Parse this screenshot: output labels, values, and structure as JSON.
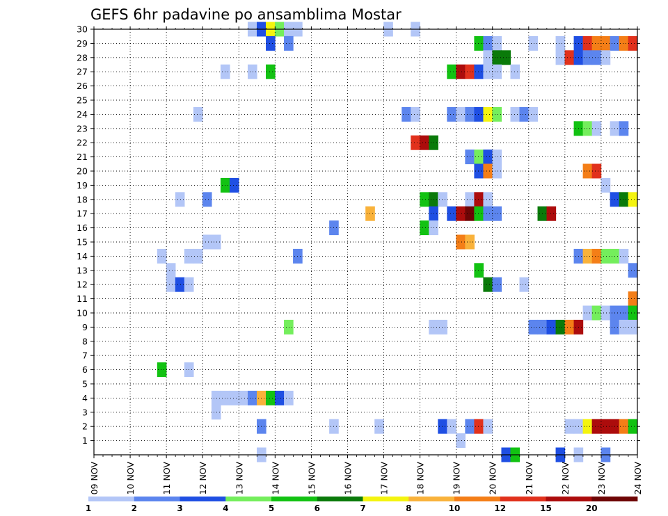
{
  "chart_data": {
    "type": "heatmap",
    "title": "GEFS 6hr padavine po ansamblima Mostar",
    "xlabel": "",
    "ylabel": "",
    "x_tick_labels": [
      "09 NOV",
      "10 NOV",
      "11 NOV",
      "12 NOV",
      "13 NOV",
      "14 NOV",
      "15 NOV",
      "16 NOV",
      "17 NOV",
      "18 NOV",
      "19 NOV",
      "20 NOV",
      "21 NOV",
      "22 NOV",
      "23 NOV",
      "24 NOV"
    ],
    "y_tick_labels": [
      "1",
      "2",
      "3",
      "4",
      "5",
      "6",
      "7",
      "8",
      "9",
      "10",
      "11",
      "12",
      "13",
      "14",
      "15",
      "16",
      "17",
      "18",
      "19",
      "20",
      "21",
      "22",
      "23",
      "24",
      "25",
      "26",
      "27",
      "28",
      "29",
      "30"
    ],
    "xlim": [
      0,
      60
    ],
    "ylim": [
      0,
      30
    ],
    "grid": true,
    "legend": {
      "position": "bottom",
      "thresholds": [
        "1",
        "2",
        "3",
        "4",
        "5",
        "6",
        "7",
        "8",
        "10",
        "12",
        "15",
        "20"
      ],
      "colors": [
        "#b3c6f7",
        "#5c85ee",
        "#1f4fe3",
        "#74ee5c",
        "#12c212",
        "#0a7a0a",
        "#f4f40f",
        "#f9b23b",
        "#f47e17",
        "#e1311c",
        "#ac0c0c",
        "#6e0505"
      ]
    },
    "cells_note": "each cell = [member, step (6-h interval index from 09 NOV 00Z), class index 0-11 into legend colors]",
    "cells": [
      [
        30,
        17,
        0
      ],
      [
        30,
        18,
        2
      ],
      [
        30,
        19,
        6
      ],
      [
        30,
        20,
        3
      ],
      [
        30,
        21,
        0
      ],
      [
        30,
        22,
        0
      ],
      [
        30,
        32,
        0
      ],
      [
        30,
        35,
        0
      ],
      [
        29,
        19,
        2
      ],
      [
        29,
        21,
        1
      ],
      [
        29,
        42,
        4
      ],
      [
        29,
        43,
        1
      ],
      [
        29,
        44,
        0
      ],
      [
        29,
        48,
        0
      ],
      [
        29,
        51,
        0
      ],
      [
        29,
        53,
        2
      ],
      [
        29,
        54,
        9
      ],
      [
        29,
        55,
        8
      ],
      [
        29,
        56,
        8
      ],
      [
        29,
        57,
        1
      ],
      [
        29,
        58,
        8
      ],
      [
        29,
        59,
        9
      ],
      [
        28,
        43,
        0
      ],
      [
        28,
        44,
        5
      ],
      [
        28,
        45,
        5
      ],
      [
        28,
        51,
        0
      ],
      [
        28,
        52,
        9
      ],
      [
        28,
        53,
        2
      ],
      [
        28,
        54,
        1
      ],
      [
        28,
        55,
        1
      ],
      [
        28,
        56,
        0
      ],
      [
        27,
        14,
        0
      ],
      [
        27,
        17,
        0
      ],
      [
        27,
        19,
        4
      ],
      [
        27,
        39,
        4
      ],
      [
        27,
        40,
        10
      ],
      [
        27,
        41,
        9
      ],
      [
        27,
        42,
        2
      ],
      [
        27,
        43,
        0
      ],
      [
        27,
        44,
        0
      ],
      [
        27,
        46,
        0
      ],
      [
        24,
        11,
        0
      ],
      [
        24,
        34,
        1
      ],
      [
        24,
        35,
        0
      ],
      [
        24,
        39,
        1
      ],
      [
        24,
        40,
        0
      ],
      [
        24,
        41,
        1
      ],
      [
        24,
        42,
        2
      ],
      [
        24,
        43,
        6
      ],
      [
        24,
        44,
        3
      ],
      [
        24,
        46,
        0
      ],
      [
        24,
        47,
        1
      ],
      [
        24,
        48,
        0
      ],
      [
        23,
        53,
        4
      ],
      [
        23,
        54,
        3
      ],
      [
        23,
        55,
        0
      ],
      [
        23,
        57,
        0
      ],
      [
        23,
        58,
        1
      ],
      [
        22,
        35,
        9
      ],
      [
        22,
        36,
        10
      ],
      [
        22,
        37,
        5
      ],
      [
        21,
        41,
        1
      ],
      [
        21,
        42,
        3
      ],
      [
        21,
        43,
        2
      ],
      [
        21,
        44,
        0
      ],
      [
        20,
        42,
        2
      ],
      [
        20,
        43,
        8
      ],
      [
        20,
        44,
        0
      ],
      [
        20,
        54,
        8
      ],
      [
        20,
        55,
        9
      ],
      [
        19,
        14,
        4
      ],
      [
        19,
        15,
        2
      ],
      [
        19,
        56,
        0
      ],
      [
        18,
        9,
        0
      ],
      [
        18,
        12,
        1
      ],
      [
        18,
        36,
        4
      ],
      [
        18,
        37,
        5
      ],
      [
        18,
        38,
        0
      ],
      [
        18,
        41,
        0
      ],
      [
        18,
        42,
        10
      ],
      [
        18,
        43,
        0
      ],
      [
        18,
        57,
        2
      ],
      [
        18,
        58,
        5
      ],
      [
        18,
        59,
        6
      ],
      [
        17,
        30,
        7
      ],
      [
        17,
        37,
        2
      ],
      [
        17,
        39,
        2
      ],
      [
        17,
        40,
        10
      ],
      [
        17,
        41,
        11
      ],
      [
        17,
        42,
        4
      ],
      [
        17,
        43,
        1
      ],
      [
        17,
        44,
        1
      ],
      [
        17,
        49,
        5
      ],
      [
        17,
        50,
        10
      ],
      [
        16,
        26,
        1
      ],
      [
        16,
        36,
        4
      ],
      [
        16,
        37,
        0
      ],
      [
        15,
        12,
        0
      ],
      [
        15,
        13,
        0
      ],
      [
        15,
        40,
        8
      ],
      [
        15,
        41,
        7
      ],
      [
        14,
        7,
        0
      ],
      [
        14,
        10,
        0
      ],
      [
        14,
        11,
        0
      ],
      [
        14,
        22,
        1
      ],
      [
        14,
        53,
        1
      ],
      [
        14,
        54,
        7
      ],
      [
        14,
        55,
        8
      ],
      [
        14,
        56,
        3
      ],
      [
        14,
        57,
        3
      ],
      [
        14,
        58,
        0
      ],
      [
        13,
        8,
        0
      ],
      [
        13,
        42,
        4
      ],
      [
        13,
        59,
        1
      ],
      [
        12,
        8,
        0
      ],
      [
        12,
        9,
        2
      ],
      [
        12,
        10,
        0
      ],
      [
        12,
        43,
        5
      ],
      [
        12,
        44,
        1
      ],
      [
        12,
        47,
        0
      ],
      [
        11,
        59,
        8
      ],
      [
        10,
        54,
        0
      ],
      [
        10,
        55,
        3
      ],
      [
        10,
        56,
        0
      ],
      [
        10,
        57,
        1
      ],
      [
        10,
        58,
        1
      ],
      [
        10,
        59,
        4
      ],
      [
        9,
        21,
        3
      ],
      [
        9,
        37,
        0
      ],
      [
        9,
        38,
        0
      ],
      [
        9,
        48,
        1
      ],
      [
        9,
        49,
        1
      ],
      [
        9,
        50,
        2
      ],
      [
        9,
        51,
        5
      ],
      [
        9,
        52,
        8
      ],
      [
        9,
        53,
        10
      ],
      [
        9,
        57,
        1
      ],
      [
        9,
        58,
        0
      ],
      [
        9,
        59,
        0
      ],
      [
        6,
        7,
        4
      ],
      [
        6,
        10,
        0
      ],
      [
        4,
        13,
        0
      ],
      [
        4,
        14,
        0
      ],
      [
        4,
        15,
        0
      ],
      [
        4,
        16,
        0
      ],
      [
        4,
        17,
        1
      ],
      [
        4,
        18,
        7
      ],
      [
        4,
        19,
        4
      ],
      [
        4,
        20,
        2
      ],
      [
        4,
        21,
        0
      ],
      [
        3,
        13,
        0
      ],
      [
        2,
        18,
        1
      ],
      [
        2,
        26,
        0
      ],
      [
        2,
        31,
        0
      ],
      [
        2,
        38,
        2
      ],
      [
        2,
        39,
        0
      ],
      [
        2,
        41,
        1
      ],
      [
        2,
        42,
        9
      ],
      [
        2,
        43,
        0
      ],
      [
        2,
        52,
        0
      ],
      [
        2,
        53,
        0
      ],
      [
        2,
        54,
        6
      ],
      [
        2,
        55,
        10
      ],
      [
        2,
        56,
        10
      ],
      [
        2,
        57,
        10
      ],
      [
        2,
        58,
        8
      ],
      [
        2,
        59,
        4
      ],
      [
        1,
        40,
        0
      ],
      [
        0,
        18,
        0
      ],
      [
        0,
        45,
        2
      ],
      [
        0,
        46,
        4
      ],
      [
        0,
        51,
        2
      ],
      [
        0,
        53,
        0
      ],
      [
        0,
        56,
        1
      ]
    ]
  }
}
